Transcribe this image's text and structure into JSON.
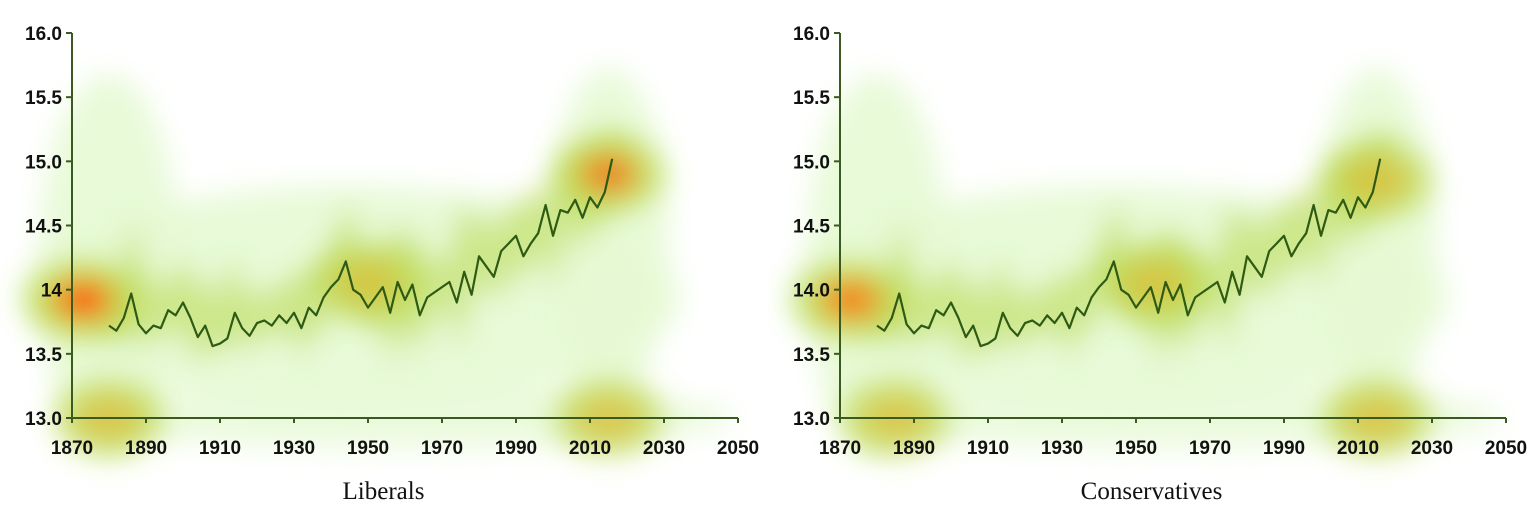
{
  "chart_data": [
    {
      "type": "heatmap",
      "title": "Liberals",
      "x_ticks": [
        "1870",
        "1890",
        "1910",
        "1930",
        "1950",
        "1970",
        "1990",
        "2010",
        "2030",
        "2050"
      ],
      "y_ticks": [
        "16.0",
        "15.5",
        "15.0",
        "14.5",
        "14",
        "13.5",
        "13.0"
      ],
      "xlim": [
        1870,
        2050
      ],
      "ylim": [
        13.0,
        16.0
      ],
      "grid": false,
      "colors": {
        "low": "#e6f9d4",
        "mid": "#b8d84a",
        "high": "#ff2a00",
        "line": "#2f5a14"
      },
      "density_peaks": [
        {
          "x": 1873,
          "y": 13.92,
          "intensity": 1.0
        },
        {
          "x": 2015,
          "y": 14.9,
          "intensity": 0.6
        },
        {
          "x": 1880,
          "y": 13.0,
          "intensity": 0.45
        },
        {
          "x": 2015,
          "y": 13.0,
          "intensity": 0.4
        },
        {
          "x": 1950,
          "y": 14.05,
          "intensity": 0.35
        }
      ],
      "series": [
        {
          "x": [
            1880,
            1882,
            1884,
            1886,
            1888,
            1890,
            1892,
            1894,
            1896,
            1898,
            1900,
            1902,
            1904,
            1906,
            1908,
            1910,
            1912,
            1914,
            1916,
            1918,
            1920,
            1922,
            1924,
            1926,
            1928,
            1930,
            1932,
            1934,
            1936,
            1938,
            1940,
            1942,
            1944,
            1946,
            1948,
            1950,
            1952,
            1954,
            1956,
            1958,
            1960,
            1962,
            1964,
            1966,
            1968,
            1970,
            1972,
            1974,
            1976,
            1978,
            1980,
            1982,
            1984,
            1986,
            1988,
            1990,
            1992,
            1994,
            1996,
            1998,
            2000,
            2002,
            2004,
            2006,
            2008,
            2010,
            2012,
            2014,
            2016
          ],
          "values": [
            13.72,
            13.68,
            13.78,
            13.97,
            13.73,
            13.66,
            13.72,
            13.7,
            13.84,
            13.8,
            13.9,
            13.78,
            13.63,
            13.72,
            13.56,
            13.58,
            13.62,
            13.82,
            13.7,
            13.64,
            13.74,
            13.76,
            13.72,
            13.8,
            13.74,
            13.82,
            13.7,
            13.86,
            13.8,
            13.94,
            14.02,
            14.08,
            14.22,
            14.0,
            13.96,
            13.86,
            13.94,
            14.02,
            13.82,
            14.06,
            13.92,
            14.04,
            13.8,
            13.94,
            13.98,
            14.02,
            14.06,
            13.9,
            14.14,
            13.96,
            14.26,
            14.18,
            14.1,
            14.3,
            14.36,
            14.42,
            14.26,
            14.36,
            14.44,
            14.66,
            14.42,
            14.62,
            14.6,
            14.7,
            14.56,
            14.72,
            14.64,
            14.76,
            15.02
          ]
        }
      ]
    },
    {
      "type": "heatmap",
      "title": "Conservatives",
      "x_ticks": [
        "1870",
        "1890",
        "1910",
        "1930",
        "1950",
        "1970",
        "1990",
        "2010",
        "2030",
        "2050"
      ],
      "y_ticks": [
        "16.0",
        "15.5",
        "15.0",
        "14.5",
        "14.0",
        "13.5",
        "13.0"
      ],
      "xlim": [
        1870,
        2050
      ],
      "ylim": [
        13.0,
        16.0
      ],
      "grid": false,
      "colors": {
        "low": "#e6f9d4",
        "mid": "#b8d84a",
        "high": "#ff5a10",
        "line": "#2f5a14"
      },
      "density_peaks": [
        {
          "x": 1873,
          "y": 13.92,
          "intensity": 0.8
        },
        {
          "x": 2015,
          "y": 14.85,
          "intensity": 0.45
        },
        {
          "x": 1885,
          "y": 13.0,
          "intensity": 0.4
        },
        {
          "x": 2015,
          "y": 13.0,
          "intensity": 0.45
        },
        {
          "x": 1955,
          "y": 14.05,
          "intensity": 0.4
        }
      ],
      "series": [
        {
          "x": [
            1880,
            1882,
            1884,
            1886,
            1888,
            1890,
            1892,
            1894,
            1896,
            1898,
            1900,
            1902,
            1904,
            1906,
            1908,
            1910,
            1912,
            1914,
            1916,
            1918,
            1920,
            1922,
            1924,
            1926,
            1928,
            1930,
            1932,
            1934,
            1936,
            1938,
            1940,
            1942,
            1944,
            1946,
            1948,
            1950,
            1952,
            1954,
            1956,
            1958,
            1960,
            1962,
            1964,
            1966,
            1968,
            1970,
            1972,
            1974,
            1976,
            1978,
            1980,
            1982,
            1984,
            1986,
            1988,
            1990,
            1992,
            1994,
            1996,
            1998,
            2000,
            2002,
            2004,
            2006,
            2008,
            2010,
            2012,
            2014,
            2016
          ],
          "values": [
            13.72,
            13.68,
            13.78,
            13.97,
            13.73,
            13.66,
            13.72,
            13.7,
            13.84,
            13.8,
            13.9,
            13.78,
            13.63,
            13.72,
            13.56,
            13.58,
            13.62,
            13.82,
            13.7,
            13.64,
            13.74,
            13.76,
            13.72,
            13.8,
            13.74,
            13.82,
            13.7,
            13.86,
            13.8,
            13.94,
            14.02,
            14.08,
            14.22,
            14.0,
            13.96,
            13.86,
            13.94,
            14.02,
            13.82,
            14.06,
            13.92,
            14.04,
            13.8,
            13.94,
            13.98,
            14.02,
            14.06,
            13.9,
            14.14,
            13.96,
            14.26,
            14.18,
            14.1,
            14.3,
            14.36,
            14.42,
            14.26,
            14.36,
            14.44,
            14.66,
            14.42,
            14.62,
            14.6,
            14.7,
            14.56,
            14.72,
            14.64,
            14.76,
            15.02
          ]
        }
      ]
    }
  ]
}
